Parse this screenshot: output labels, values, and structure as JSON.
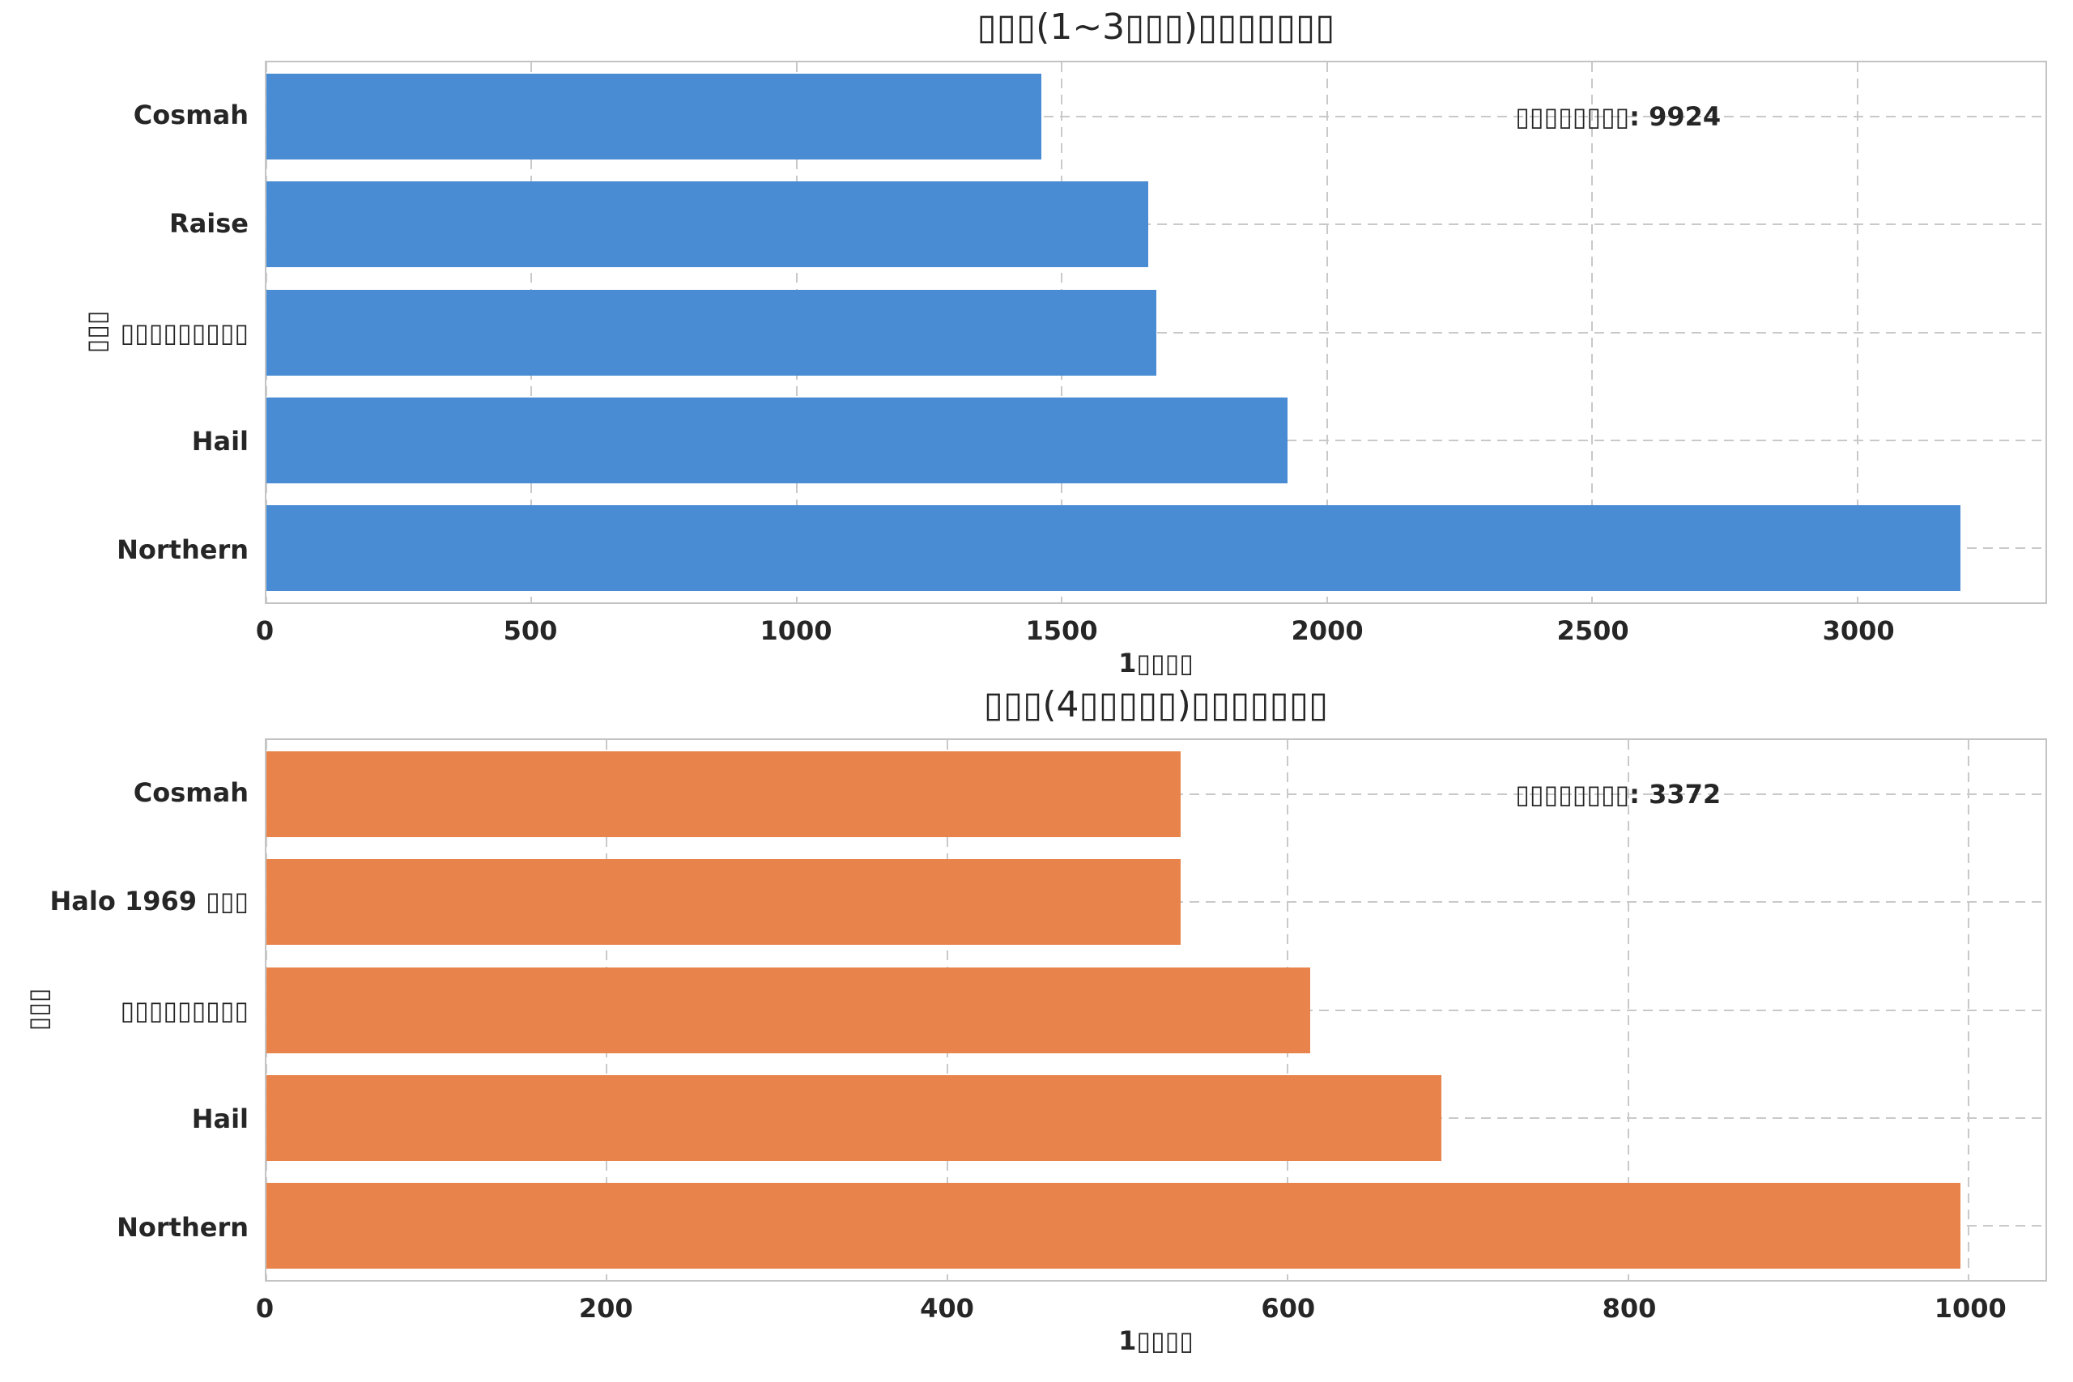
{
  "figure": {
    "background": "#ffffff",
    "missing_glyph_char": "▯"
  },
  "chart_data": [
    {
      "type": "bar",
      "orientation": "horizontal",
      "title": "▯▯▯(1~3▯▯▯)▯▯▯▯▯▯▯",
      "categories": [
        "Cosmah",
        "Raise",
        "▯▯▯▯▯▯▯▯▯",
        "Hail",
        "Northern"
      ],
      "values": [
        1462,
        1663,
        1679,
        1925,
        3195
      ],
      "xticks": [
        0,
        500,
        1000,
        1500,
        2000,
        2500,
        3000
      ],
      "xlim": [
        0,
        3355
      ],
      "xlabel": "1▯▯▯▯",
      "ylabel": "▯▯▯",
      "annotation": "▯▯▯▯▯▯▯▯: 9924",
      "bar_color": "#4A8CD3",
      "grid": true
    },
    {
      "type": "bar",
      "orientation": "horizontal",
      "title": "▯▯▯(4▯▯▯▯▯)▯▯▯▯▯▯▯",
      "categories": [
        "Cosmah",
        "Halo 1969 ▯▯▯",
        "▯▯▯▯▯▯▯▯▯",
        "Hail",
        "Northern"
      ],
      "values": [
        537,
        537,
        613,
        690,
        995
      ],
      "xticks": [
        0,
        200,
        400,
        600,
        800,
        1000
      ],
      "xlim": [
        0,
        1045
      ],
      "xlabel": "1▯▯▯▯",
      "ylabel": "▯▯▯",
      "annotation": "▯▯▯▯▯▯▯▯: 3372",
      "bar_color": "#E8844B",
      "grid": true
    }
  ]
}
